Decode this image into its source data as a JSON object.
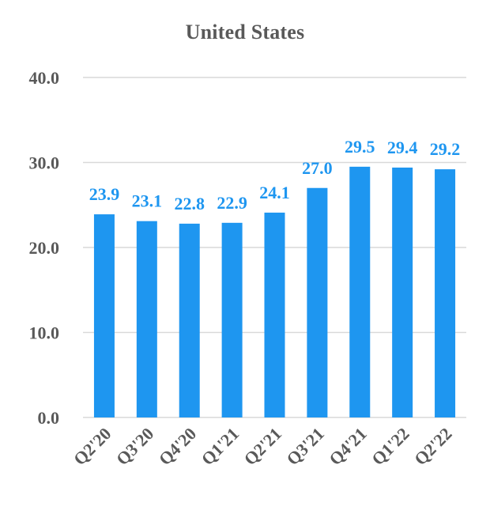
{
  "chart_data": {
    "type": "bar",
    "title": "United States",
    "xlabel": "",
    "ylabel": "",
    "categories": [
      "Q2'20",
      "Q3'20",
      "Q4'20",
      "Q1'21",
      "Q2'21",
      "Q3'21",
      "Q4'21",
      "Q1'22",
      "Q2'22"
    ],
    "values": [
      23.9,
      23.1,
      22.8,
      22.9,
      24.1,
      27.0,
      29.5,
      29.4,
      29.2
    ],
    "data_labels": [
      "23.9",
      "23.1",
      "22.8",
      "22.9",
      "24.1",
      "27.0",
      "29.5",
      "29.4",
      "29.2"
    ],
    "ylim": [
      0,
      40
    ],
    "yticks": [
      0,
      10,
      20,
      30,
      40
    ],
    "ytick_labels": [
      "0.0",
      "10.0",
      "20.0",
      "30.0",
      "40.0"
    ],
    "grid": true,
    "legend": false,
    "colors": {
      "bar": "#1E96F0",
      "data_label": "#1E96F0",
      "grid": "#D9D9D9",
      "axis_text": "#595959"
    }
  }
}
